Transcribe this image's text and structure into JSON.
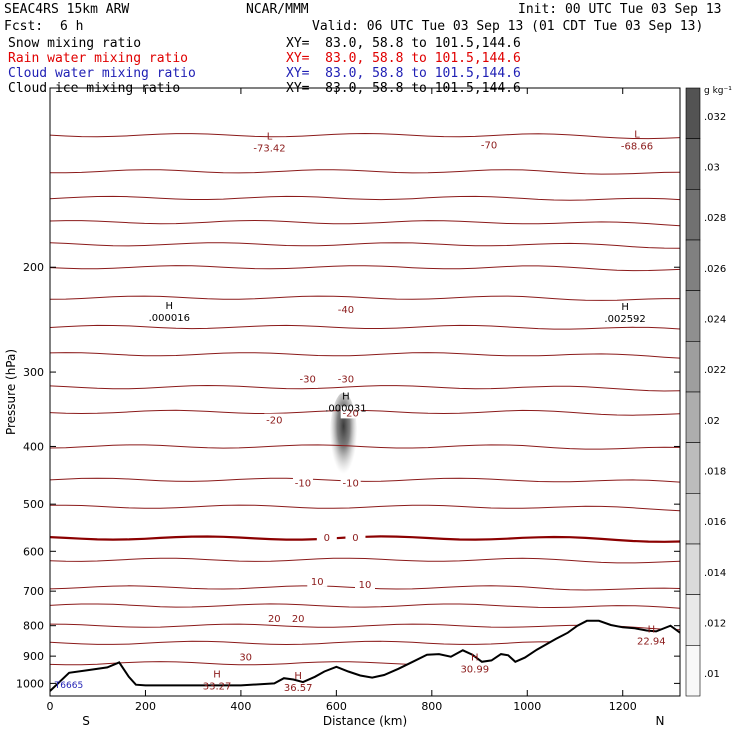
{
  "header": {
    "model": "SEAC4RS 15km ARW",
    "center": "NCAR/MMM",
    "init": "Init: 00 UTC Tue 03 Sep 13",
    "fcst_label": "Fcst:",
    "fcst_value": "6 h",
    "valid": "Valid: 06 UTC Tue 03 Sep 13 (01 CDT Tue 03 Sep 13)",
    "fields": [
      {
        "name": "Snow mixing ratio",
        "xy": "XY=  83.0, 58.8 to 101.5,144.6",
        "color": "#000000"
      },
      {
        "name": "Rain water mixing ratio",
        "xy": "XY=  83.0, 58.8 to 101.5,144.6",
        "color": "#e00000"
      },
      {
        "name": "Cloud water mixing ratio",
        "xy": "XY=  83.0, 58.8 to 101.5,144.6",
        "color": "#1f1fb4"
      },
      {
        "name": "Cloud ice mixing ratio",
        "xy": "XY=  83.0, 58.8 to 101.5,144.6",
        "color": "#000000"
      }
    ]
  },
  "colors": {
    "isotherm": "#8b1a1a",
    "zero_isotherm": "#8b0000",
    "terrain": "#000000",
    "shading": "#555555"
  },
  "chart_data": {
    "type": "cross-section",
    "xlabel": "Distance (km)",
    "ylabel": "Pressure (hPa)",
    "xlim": [
      0,
      1320
    ],
    "ylim_hpa": [
      100,
      1050
    ],
    "y_scale": "log-pressure",
    "x_ticks": [
      0,
      200,
      400,
      600,
      800,
      1000,
      1200
    ],
    "y_ticks": [
      200,
      300,
      400,
      500,
      600,
      700,
      800,
      900,
      1000
    ],
    "end_labels": {
      "left": "S",
      "right": "N"
    },
    "colorbar": {
      "units": "g kg⁻¹",
      "ticks": [
        ".01",
        ".012",
        ".014",
        ".016",
        ".018",
        ".02",
        ".022",
        ".024",
        ".026",
        ".028",
        ".03",
        ".032"
      ],
      "levels": 12
    },
    "isotherms": [
      {
        "t": -70,
        "p": 120
      },
      {
        "t": -65,
        "p": 138
      },
      {
        "t": -60,
        "p": 153
      },
      {
        "t": -55,
        "p": 168
      },
      {
        "t": -50,
        "p": 183
      },
      {
        "t": -45,
        "p": 200
      },
      {
        "t": -40,
        "p": 225
      },
      {
        "t": -35,
        "p": 252
      },
      {
        "t": -30,
        "p": 280
      },
      {
        "t": -25,
        "p": 318
      },
      {
        "t": -20,
        "p": 350
      },
      {
        "t": -15,
        "p": 400
      },
      {
        "t": -10,
        "p": 455
      },
      {
        "t": -5,
        "p": 505
      },
      {
        "t": 0,
        "p": 570
      },
      {
        "t": 5,
        "p": 620
      },
      {
        "t": 10,
        "p": 690
      },
      {
        "t": 15,
        "p": 740
      },
      {
        "t": 20,
        "p": 800
      },
      {
        "t": 25,
        "p": 855
      },
      {
        "t": 30,
        "p": 925
      }
    ],
    "contour_labels": [
      {
        "text": "-70",
        "x": 920,
        "p": 125
      },
      {
        "text": "-40",
        "x": 620,
        "p": 236
      },
      {
        "text": "-30",
        "x": 540,
        "p": 309
      },
      {
        "text": "-30",
        "x": 620,
        "p": 309
      },
      {
        "text": "-20",
        "x": 470,
        "p": 362
      },
      {
        "text": "-20",
        "x": 630,
        "p": 352
      },
      {
        "text": "-10",
        "x": 530,
        "p": 462
      },
      {
        "text": "-10",
        "x": 630,
        "p": 462
      },
      {
        "text": "0",
        "x": 580,
        "p": 570
      },
      {
        "text": "0",
        "x": 640,
        "p": 570
      },
      {
        "text": "10",
        "x": 560,
        "p": 675
      },
      {
        "text": "10",
        "x": 660,
        "p": 684
      },
      {
        "text": "20",
        "x": 470,
        "p": 780
      },
      {
        "text": "20",
        "x": 520,
        "p": 780
      },
      {
        "text": "30",
        "x": 410,
        "p": 905
      }
    ],
    "extrema": [
      {
        "kind": "L",
        "value": "-73.42",
        "x": 460,
        "p": 123,
        "color": "#8b1a1a"
      },
      {
        "kind": "L",
        "value": "-68.66",
        "x": 1230,
        "p": 122,
        "color": "#8b1a1a"
      },
      {
        "kind": "H",
        "value": ".000016",
        "x": 250,
        "p": 237,
        "color": "#000000"
      },
      {
        "kind": "H",
        "value": ".002592",
        "x": 1205,
        "p": 238,
        "color": "#000000"
      },
      {
        "kind": "H",
        "value": ".000031",
        "x": 620,
        "p": 336,
        "color": "#000000"
      },
      {
        "kind": "H",
        "value": "33.27",
        "x": 350,
        "p": 985,
        "color": "#8b1a1a"
      },
      {
        "kind": "H",
        "value": "36.57",
        "x": 520,
        "p": 990,
        "color": "#8b1a1a"
      },
      {
        "kind": "H",
        "value": "30.99",
        "x": 890,
        "p": 923,
        "color": "#8b1a1a"
      },
      {
        "kind": "H",
        "value": "22.94",
        "x": 1260,
        "p": 828,
        "color": "#8b1a1a"
      }
    ],
    "corner_label": {
      "text": "T6665",
      "x": 10,
      "p": 1018,
      "color": "#1f1fb4"
    },
    "terrain_km_hpa": [
      [
        0,
        1030
      ],
      [
        40,
        960
      ],
      [
        80,
        950
      ],
      [
        120,
        940
      ],
      [
        145,
        922
      ],
      [
        165,
        975
      ],
      [
        180,
        1005
      ],
      [
        200,
        1008
      ],
      [
        300,
        1008
      ],
      [
        400,
        1008
      ],
      [
        470,
        1000
      ],
      [
        490,
        980
      ],
      [
        510,
        985
      ],
      [
        530,
        995
      ],
      [
        555,
        975
      ],
      [
        575,
        955
      ],
      [
        600,
        938
      ],
      [
        625,
        955
      ],
      [
        650,
        970
      ],
      [
        675,
        978
      ],
      [
        700,
        968
      ],
      [
        730,
        945
      ],
      [
        760,
        920
      ],
      [
        790,
        895
      ],
      [
        815,
        893
      ],
      [
        840,
        902
      ],
      [
        865,
        880
      ],
      [
        885,
        895
      ],
      [
        905,
        920
      ],
      [
        925,
        915
      ],
      [
        945,
        893
      ],
      [
        960,
        897
      ],
      [
        975,
        920
      ],
      [
        995,
        905
      ],
      [
        1020,
        878
      ],
      [
        1060,
        842
      ],
      [
        1085,
        822
      ],
      [
        1105,
        800
      ],
      [
        1125,
        785
      ],
      [
        1150,
        785
      ],
      [
        1175,
        798
      ],
      [
        1200,
        805
      ],
      [
        1225,
        808
      ],
      [
        1250,
        815
      ],
      [
        1270,
        818
      ],
      [
        1300,
        800
      ],
      [
        1320,
        822
      ]
    ],
    "hydrometeor_plume": {
      "x_center": 615,
      "p_top": 325,
      "p_bottom": 470
    }
  }
}
